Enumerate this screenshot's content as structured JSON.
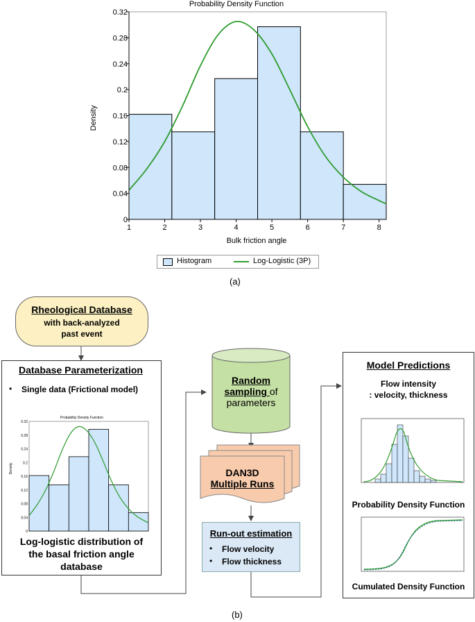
{
  "chart_data": {
    "type": "bar",
    "title": "Probability Density Function",
    "xlabel": "Bulk friction angle",
    "ylabel": "Density",
    "xlim": [
      1,
      8.2
    ],
    "ylim": [
      0,
      0.32
    ],
    "x_ticks": [
      "1",
      "2",
      "3",
      "4",
      "5",
      "6",
      "7",
      "8"
    ],
    "y_ticks": [
      "0",
      "0.04",
      "0.08",
      "0.12",
      "0.16",
      "0.2",
      "0.24",
      "0.28",
      "0.32"
    ],
    "bins": [
      {
        "from": 1.0,
        "to": 2.2,
        "value": 0.162
      },
      {
        "from": 2.2,
        "to": 3.4,
        "value": 0.135
      },
      {
        "from": 3.4,
        "to": 4.6,
        "value": 0.217
      },
      {
        "from": 4.6,
        "to": 5.8,
        "value": 0.297
      },
      {
        "from": 5.8,
        "to": 7.0,
        "value": 0.135
      },
      {
        "from": 7.0,
        "to": 8.2,
        "value": 0.054
      }
    ],
    "curve": {
      "name": "Log-Logistic (3P)",
      "x": [
        1.0,
        1.5,
        2.0,
        2.5,
        3.0,
        3.5,
        4.0,
        4.5,
        5.0,
        5.5,
        6.0,
        6.5,
        7.0,
        7.5,
        8.0,
        8.2
      ],
      "y": [
        0.045,
        0.078,
        0.12,
        0.175,
        0.237,
        0.285,
        0.305,
        0.292,
        0.255,
        0.2,
        0.143,
        0.097,
        0.065,
        0.043,
        0.029,
        0.024
      ]
    },
    "legend": [
      "Histogram",
      "Log-Logistic (3P)"
    ],
    "legend_position": "bottom",
    "colors": {
      "bar_fill": "#cfe6fb",
      "bar_stroke": "#000000",
      "curve": "#2e9b2e"
    }
  },
  "labels": {
    "panel_a": "(a)",
    "panel_b": "(b)"
  },
  "diagram": {
    "rheological": {
      "title": "Rheological Database",
      "line2": "with back-analyzed",
      "line3": "past event"
    },
    "parameterization": {
      "title": "Database Parameterization",
      "bullet": "Single data  (Frictional model)",
      "caption_line1": "Log-logistic distribution of",
      "caption_line2": "the basal friction angle",
      "caption_line3": "database",
      "mini_title": "Probability Density Function",
      "mini_ylabel": "Density"
    },
    "sampling": {
      "line1": "Random",
      "line2_u": "sampling ",
      "line2_rest": "of",
      "line3": "parameters"
    },
    "dan3d": {
      "line1": "DAN3D",
      "line2": "Multiple Runs"
    },
    "runout": {
      "title": "Run-out estimation",
      "items": [
        "Flow velocity",
        "Flow thickness"
      ]
    },
    "predictions": {
      "title": "Model Predictions",
      "sub1": "Flow intensity",
      "sub2": ": velocity, thickness",
      "pdf_caption": "Probability Density Function",
      "cdf_caption": "Cumulated Density Function"
    },
    "colors": {
      "rheological_fill": "#fdf0c2",
      "sampling_fill": "#c5e0a5",
      "dan3d_fill": "#f8cbad",
      "runout_fill": "#dbe8f5"
    }
  }
}
